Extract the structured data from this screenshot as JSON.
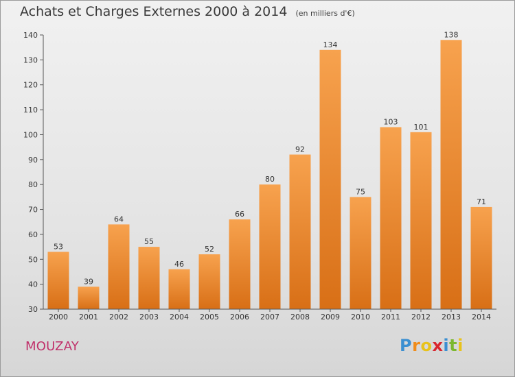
{
  "header": {
    "title": "Achats et Charges Externes 2000 à 2014",
    "unit": "(en milliers d'€)"
  },
  "location": "MOUZAY",
  "logo": {
    "letters": [
      "P",
      "r",
      "o",
      "x",
      "i",
      "t",
      "i"
    ],
    "colors": [
      "#3b8fd1",
      "#f08c1a",
      "#e8c21b",
      "#d9262e",
      "#3b8fd1",
      "#7cb82f",
      "#e8c21b"
    ]
  },
  "colors": {
    "bar_top": "#f7a24e",
    "bar_bottom": "#d86f16",
    "axis": "#555555",
    "text": "#333333"
  },
  "chart_data": {
    "type": "bar",
    "title": "Achats et Charges Externes 2000 à 2014",
    "categories": [
      "2000",
      "2001",
      "2002",
      "2003",
      "2004",
      "2005",
      "2006",
      "2007",
      "2008",
      "2009",
      "2010",
      "2011",
      "2012",
      "2013",
      "2014"
    ],
    "values": [
      53,
      39,
      64,
      55,
      46,
      52,
      66,
      80,
      92,
      134,
      75,
      103,
      101,
      138,
      71
    ],
    "ylim": [
      30,
      140
    ],
    "yticks": [
      30,
      40,
      50,
      60,
      70,
      80,
      90,
      100,
      110,
      120,
      130,
      140
    ],
    "data_labels": true,
    "grid": false,
    "legend": "none"
  }
}
